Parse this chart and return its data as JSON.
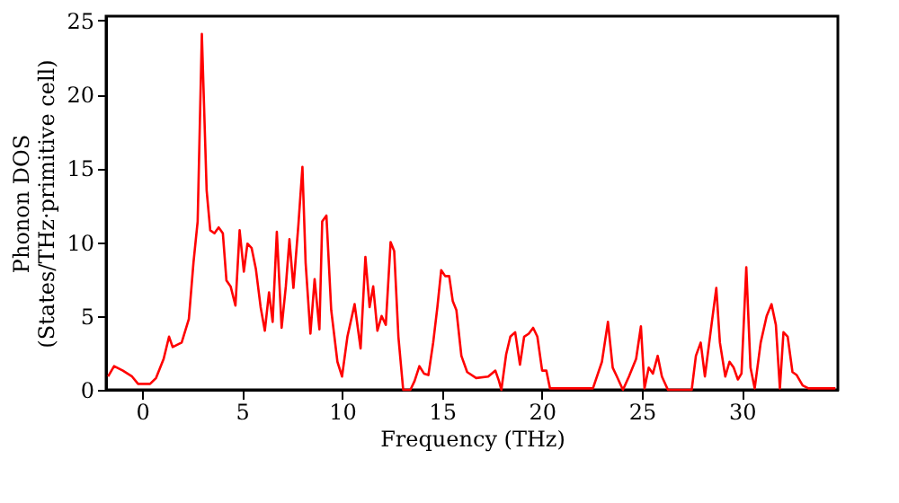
{
  "chart_data": {
    "type": "line",
    "xlabel": "Frequency (THz)",
    "ylabel": "Phonon DOS\n(States/THz·primitive cell)",
    "xlim": [
      -1.8,
      34.8
    ],
    "xticks": [
      0,
      5,
      10,
      15,
      20,
      25,
      30
    ],
    "ylim": [
      0,
      25.3
    ],
    "yticks": [
      0,
      5,
      10,
      15,
      20,
      25
    ],
    "grid": false,
    "legend": false,
    "marker": "none",
    "line_style": "solid",
    "series": [
      {
        "color": "#ff0000",
        "x": [
          -1.7,
          -1.4,
          -0.96,
          -0.5,
          -0.2,
          0.4,
          0.7,
          1.08,
          1.35,
          1.53,
          1.98,
          2.34,
          2.57,
          2.78,
          2.99,
          3.23,
          3.41,
          3.62,
          3.83,
          4.04,
          4.22,
          4.43,
          4.67,
          4.88,
          5.09,
          5.27,
          5.48,
          5.69,
          5.93,
          6.14,
          6.35,
          6.53,
          6.74,
          6.98,
          7.19,
          7.37,
          7.57,
          7.82,
          8.02,
          8.18,
          8.42,
          8.63,
          8.87,
          9.01,
          9.22,
          9.46,
          9.77,
          10.0,
          10.27,
          10.63,
          10.93,
          11.17,
          11.38,
          11.56,
          11.77,
          11.98,
          12.19,
          12.43,
          12.61,
          12.82,
          13.06,
          13.42,
          13.63,
          13.87,
          14.1,
          14.32,
          14.56,
          14.77,
          14.96,
          15.16,
          15.36,
          15.54,
          15.72,
          15.97,
          16.26,
          16.71,
          17.31,
          17.67,
          17.85,
          17.97,
          18.21,
          18.42,
          18.66,
          18.9,
          19.11,
          19.34,
          19.56,
          19.77,
          20.01,
          20.22,
          20.4,
          21.65,
          22.55,
          23.0,
          23.3,
          23.54,
          23.75,
          24.05,
          24.35,
          24.71,
          24.95,
          25.13,
          25.34,
          25.55,
          25.79,
          26.0,
          26.3,
          27.49,
          27.7,
          27.94,
          28.15,
          28.48,
          28.72,
          28.9,
          29.17,
          29.38,
          29.59,
          29.8,
          29.98,
          30.22,
          30.43,
          30.64,
          30.94,
          31.24,
          31.48,
          31.7,
          31.9,
          32.08,
          32.29,
          32.53,
          32.74,
          33.04,
          33.33,
          34.68
        ],
        "values": [
          0.9,
          1.6,
          1.3,
          0.9,
          0.4,
          0.4,
          0.8,
          2.1,
          3.6,
          2.9,
          3.2,
          4.8,
          8.6,
          11.4,
          24.1,
          13.5,
          10.8,
          10.6,
          11.0,
          10.6,
          7.4,
          7.0,
          5.7,
          10.8,
          8.0,
          9.9,
          9.6,
          8.2,
          5.6,
          4.0,
          6.6,
          4.6,
          10.7,
          4.2,
          7.0,
          10.2,
          6.9,
          11.2,
          15.1,
          8.6,
          3.8,
          7.5,
          4.1,
          11.4,
          11.8,
          5.4,
          1.9,
          0.9,
          3.6,
          5.8,
          2.8,
          9.0,
          5.6,
          7.0,
          4.0,
          5.0,
          4.4,
          10.0,
          9.4,
          3.6,
          0,
          0,
          0.6,
          1.6,
          1.1,
          1.0,
          3.2,
          5.6,
          8.1,
          7.7,
          7.7,
          6.0,
          5.4,
          2.3,
          1.2,
          0.8,
          0.9,
          1.3,
          0.6,
          0,
          2.4,
          3.6,
          3.9,
          1.7,
          3.6,
          3.8,
          4.2,
          3.6,
          1.3,
          1.3,
          0.1,
          0.1,
          0.1,
          1.9,
          4.6,
          1.5,
          0.9,
          0,
          0.9,
          2.1,
          4.3,
          0.1,
          1.5,
          1.1,
          2.3,
          0.9,
          0,
          0,
          2.3,
          3.2,
          0.9,
          4.4,
          6.9,
          3.2,
          0.9,
          1.9,
          1.5,
          0.7,
          1.1,
          8.3,
          1.5,
          0.1,
          3.2,
          5.0,
          5.8,
          4.4,
          0.1,
          3.9,
          3.6,
          1.2,
          1.0,
          0.3,
          0.1,
          0.1
        ]
      }
    ]
  }
}
